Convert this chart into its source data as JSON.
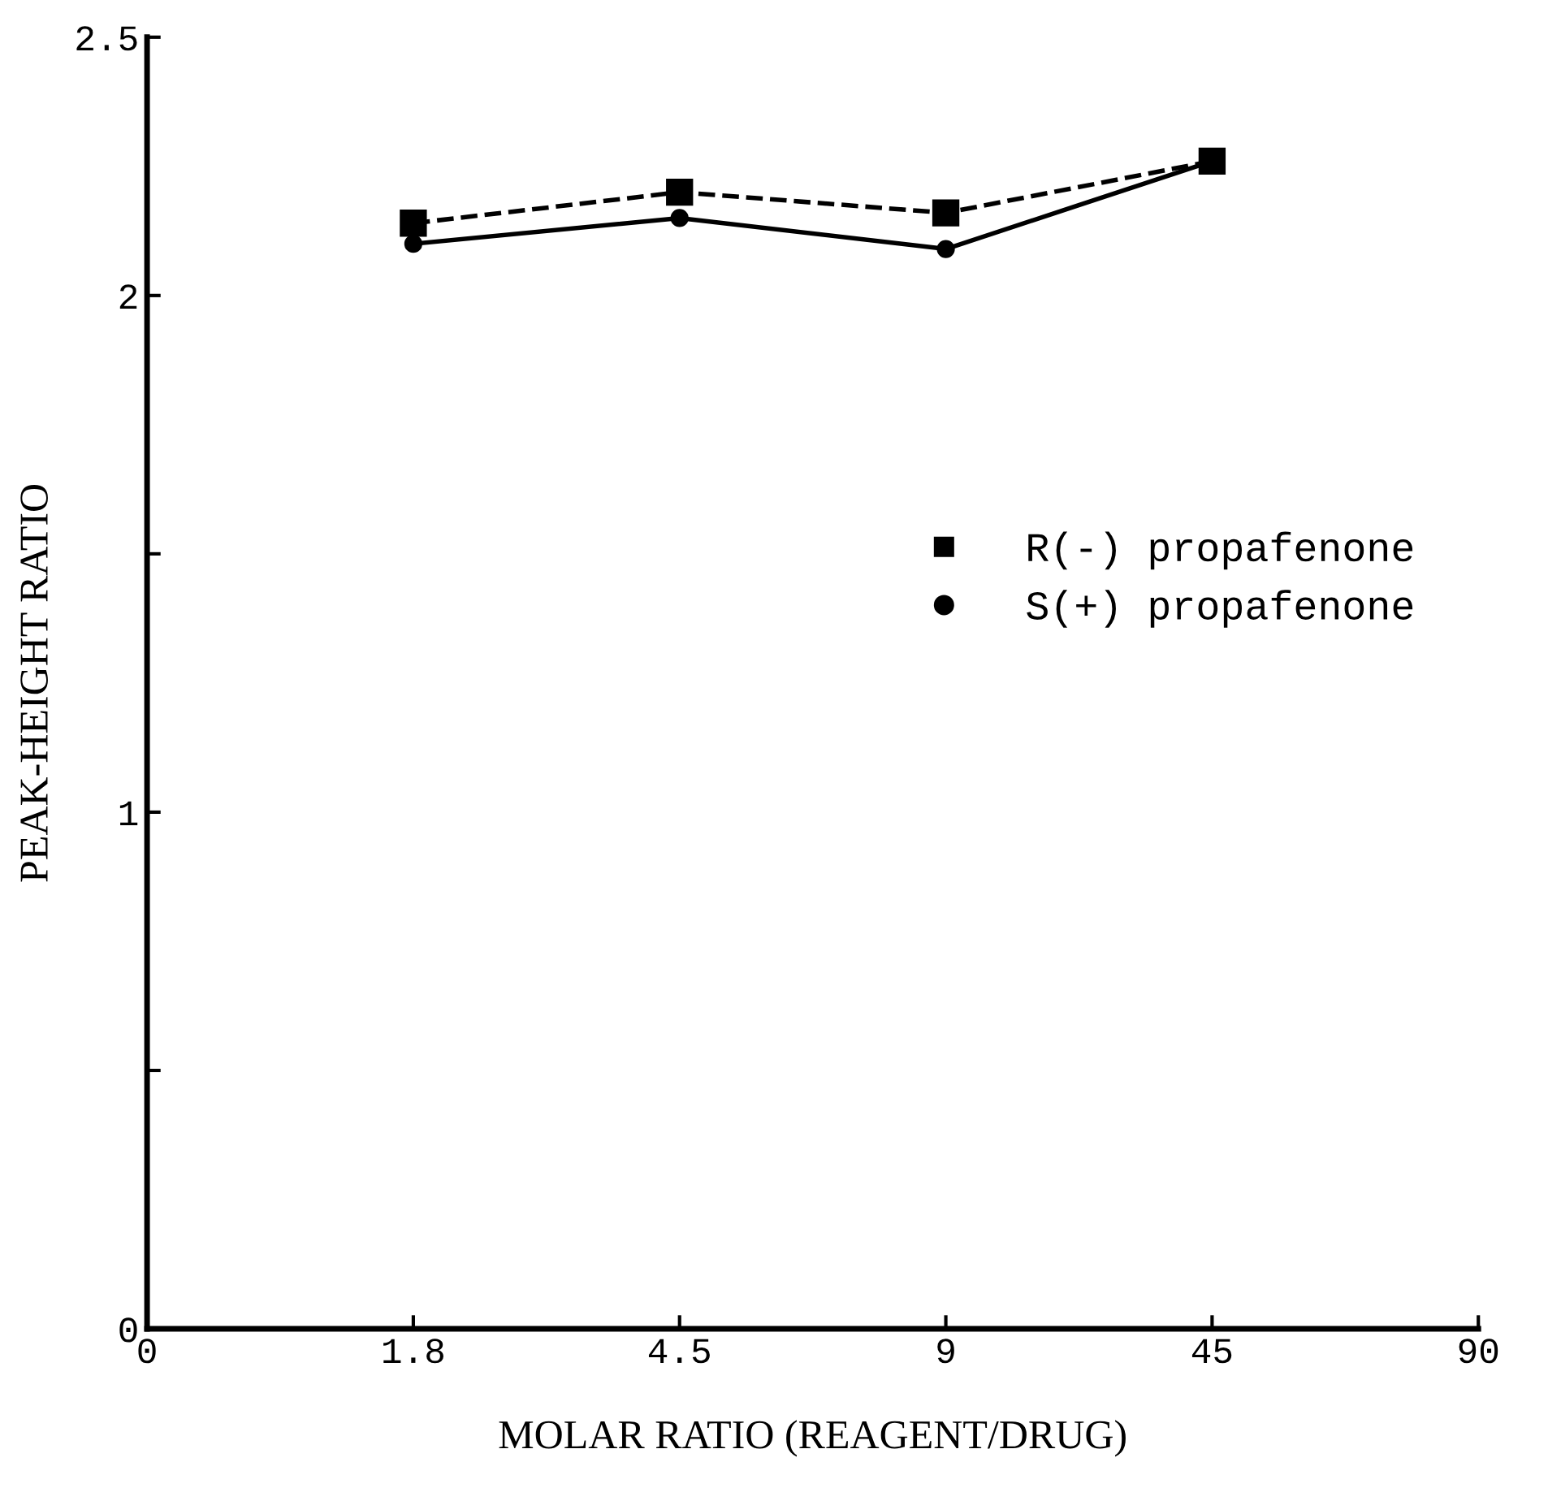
{
  "chart_data": {
    "type": "line",
    "xlabel": "MOLAR RATIO (REAGENT/DRUG)",
    "ylabel": "PEAK-HEIGHT RATIO",
    "categories": [
      "0",
      "1.8",
      "4.5",
      "9",
      "45",
      "90"
    ],
    "series": [
      {
        "name": "R(-) propafenone",
        "color": "#000000",
        "marker": "square",
        "line_style": "dashed",
        "values": [
          null,
          2.14,
          2.2,
          2.16,
          2.26,
          null
        ]
      },
      {
        "name": "S(+) propafenone",
        "color": "#000000",
        "marker": "circle",
        "line_style": "solid",
        "values": [
          null,
          2.1,
          2.15,
          2.09,
          2.26,
          null
        ]
      }
    ],
    "ylim": [
      0,
      2.5
    ],
    "yticks": [
      0,
      {
        "value": 0.5,
        "label": null
      },
      1,
      {
        "value": 1.5,
        "label": null
      },
      2,
      2.5
    ],
    "grid": false,
    "legend": "right"
  }
}
